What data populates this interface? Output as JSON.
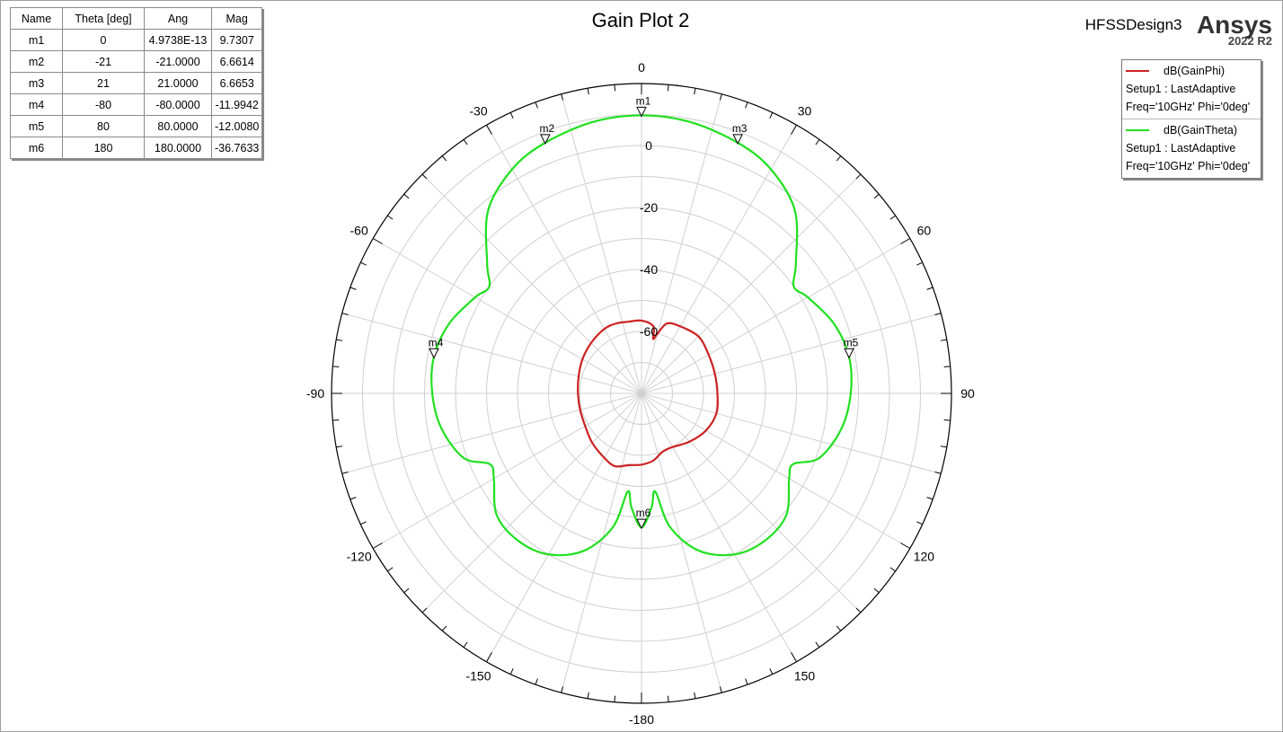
{
  "header": {
    "design": "HFSSDesign3",
    "brand": "Ansys",
    "version": "2022 R2"
  },
  "marker_table": {
    "columns": [
      "Name",
      "Theta [deg]",
      "Ang",
      "Mag"
    ],
    "rows": [
      [
        "m1",
        "0",
        "4.9738E-13",
        "9.7307"
      ],
      [
        "m2",
        "-21",
        "-21.0000",
        "6.6614"
      ],
      [
        "m3",
        "21",
        "21.0000",
        "6.6653"
      ],
      [
        "m4",
        "-80",
        "-80.0000",
        "-11.9942"
      ],
      [
        "m5",
        "80",
        "80.0000",
        "-12.0080"
      ],
      [
        "m6",
        "180",
        "180.0000",
        "-36.7633"
      ]
    ]
  },
  "legend": [
    {
      "name": "dB(GainPhi)",
      "line2": "Setup1 : LastAdaptive",
      "line3": "Freq='10GHz' Phi='0deg'",
      "color": "#cc2222"
    },
    {
      "name": "dB(GainTheta)",
      "line2": "Setup1 : LastAdaptive",
      "line3": "Freq='10GHz' Phi='0deg'",
      "color": "#1fe01f"
    }
  ],
  "chart_data": {
    "type": "polar",
    "title": "Gain Plot 2",
    "r_range": [
      -80,
      20
    ],
    "r_ticks": [
      "0",
      "-20",
      "-40",
      "-60"
    ],
    "r_tick_values": [
      0,
      -20,
      -40,
      -60
    ],
    "angle_ticks": [
      "0",
      "30",
      "60",
      "90",
      "120",
      "150",
      "-180",
      "-150",
      "-120",
      "-90",
      "-60",
      "-30"
    ],
    "angle_tick_values": [
      0,
      30,
      60,
      90,
      120,
      150,
      180,
      -150,
      -120,
      -90,
      -60,
      -30
    ],
    "grid": true,
    "legend_position": "top-right",
    "series": [
      {
        "name": "dB(GainPhi)",
        "theta": [
          0,
          10,
          12,
          15,
          20,
          30,
          45,
          60,
          75,
          90,
          105,
          120,
          135,
          150,
          160,
          170,
          180,
          -170,
          -160,
          -150,
          -135,
          -120,
          -105,
          -90,
          -75,
          -60,
          -45,
          -30,
          -20,
          -10
        ],
        "values": [
          -56.5,
          -58,
          -62,
          -60,
          -56,
          -55,
          -54,
          -55,
          -55.5,
          -55.5,
          -55,
          -56,
          -58,
          -60,
          -60,
          -58,
          -57,
          -56.5,
          -55,
          -56,
          -57.5,
          -59,
          -59.5,
          -59.5,
          -59,
          -58,
          -57,
          -56,
          -56,
          -56.5
        ]
      },
      {
        "name": "dB(GainTheta)",
        "theta": [
          0,
          10,
          21,
          30,
          40,
          50,
          55,
          60,
          70,
          80,
          90,
          100,
          110,
          115,
          120,
          130,
          140,
          150,
          160,
          168,
          172,
          175,
          180,
          -175,
          -172,
          -168,
          -160,
          -150,
          -140,
          -130,
          -120,
          -115,
          -110,
          -100,
          -90,
          -80,
          -70,
          -60,
          -55,
          -50,
          -40,
          -30,
          -21,
          -10
        ],
        "values": [
          9.73,
          9.0,
          6.66,
          3.5,
          -3,
          -15,
          -20,
          -18,
          -14,
          -12.0,
          -12.5,
          -14.5,
          -19,
          -26,
          -25,
          -19,
          -18,
          -20,
          -26,
          -36,
          -48,
          -43,
          -36.76,
          -43,
          -48,
          -36,
          -26,
          -20,
          -18,
          -19,
          -25,
          -26,
          -19,
          -14.5,
          -12.5,
          -11.99,
          -14,
          -18,
          -20,
          -15,
          -3,
          3.5,
          6.66,
          9.0
        ]
      }
    ],
    "markers": [
      {
        "name": "m1",
        "series": "dB(GainTheta)",
        "theta": 0,
        "value": 9.7307
      },
      {
        "name": "m2",
        "series": "dB(GainTheta)",
        "theta": -21,
        "value": 6.6614
      },
      {
        "name": "m3",
        "series": "dB(GainTheta)",
        "theta": 21,
        "value": 6.6653
      },
      {
        "name": "m4",
        "series": "dB(GainTheta)",
        "theta": -80,
        "value": -11.9942
      },
      {
        "name": "m5",
        "series": "dB(GainTheta)",
        "theta": 80,
        "value": -12.008
      },
      {
        "name": "m6",
        "series": "dB(GainTheta)",
        "theta": 180,
        "value": -36.7633
      }
    ]
  }
}
